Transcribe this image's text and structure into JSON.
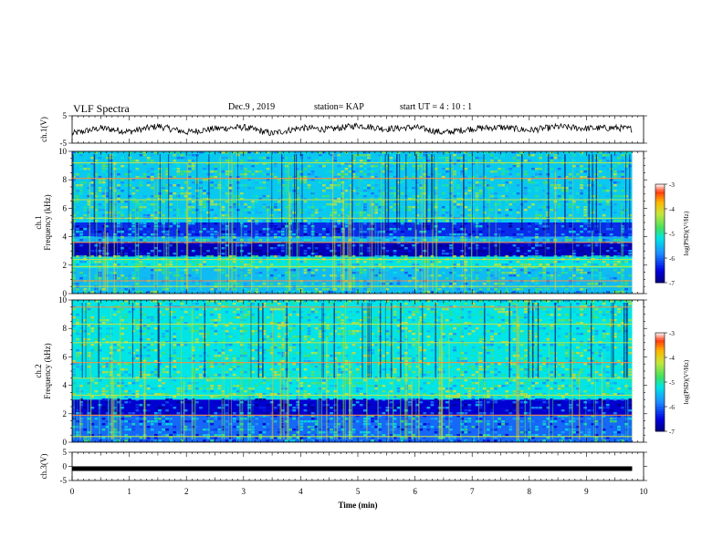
{
  "header": {
    "title": "VLF Spectra",
    "date": "Dec.9 , 2019",
    "station": "station= KAP",
    "start": "start UT = 4 : 10 : 1"
  },
  "colors": {
    "spectrogram_bg": "#1040c8",
    "spectrogram_dark": "#00107a",
    "speckle_green": "#3cdc6e",
    "speckle_cyan": "#28b8f0",
    "line_yellow": "#c8e63c",
    "line_orange": "#ff8c3c",
    "waveform": "#000000"
  },
  "chart_data": [
    {
      "type": "line",
      "name": "ch1-waveform",
      "ylabel": "ch.1(V)",
      "ylim": [
        -5,
        5
      ],
      "yticks": [
        5,
        -5
      ],
      "xlim": [
        0,
        10
      ],
      "x": [
        0,
        0.5,
        1,
        1.5,
        2,
        2.5,
        3,
        3.5,
        4,
        4.5,
        5,
        5.5,
        6,
        6.5,
        7,
        7.5,
        8,
        8.5,
        9,
        9.5,
        9.8
      ],
      "y": [
        -1.5,
        0.5,
        -0.8,
        1.2,
        -1.0,
        0.3,
        0.8,
        -1.5,
        0.6,
        0.0,
        1.5,
        0.2,
        0.8,
        -1.2,
        0.3,
        0.8,
        -0.3,
        1.0,
        0.4,
        0.6,
        0.2
      ]
    },
    {
      "type": "heatmap",
      "name": "ch1-spectrogram",
      "ylabel": "ch.1\nFrequency (kHz)",
      "ylim": [
        0,
        10
      ],
      "yticks": [
        0,
        2,
        4,
        6,
        8,
        10
      ],
      "xlim": [
        0,
        10
      ],
      "data_xmax": 9.8,
      "colorbar": {
        "label": "log(PSD)(V²/Hz)",
        "ticks": [
          -3,
          -4,
          -5,
          -6,
          -7
        ],
        "range": [
          -7,
          -3
        ]
      },
      "bands": [
        {
          "f0": 0.0,
          "f1": 1.8,
          "level": -5.5
        },
        {
          "f0": 1.8,
          "f1": 2.6,
          "level": -5.2
        },
        {
          "f0": 2.6,
          "f1": 3.6,
          "level": -6.7
        },
        {
          "f0": 3.6,
          "f1": 4.0,
          "level": -5.6
        },
        {
          "f0": 4.0,
          "f1": 5.0,
          "level": -6.3
        },
        {
          "f0": 5.0,
          "f1": 10.0,
          "level": -5.4
        }
      ],
      "tones_khz": [
        0.5,
        0.9,
        1.9,
        2.4,
        3.6,
        5.3,
        6.6,
        8.1,
        9.2
      ]
    },
    {
      "type": "heatmap",
      "name": "ch2-spectrogram",
      "ylabel": "ch.2\nFrequency (kHz)",
      "ylim": [
        0,
        10
      ],
      "yticks": [
        0,
        2,
        4,
        6,
        8,
        10
      ],
      "xlim": [
        0,
        10
      ],
      "data_xmax": 9.8,
      "colorbar": {
        "label": "log(PSD)(V²/Hz)",
        "ticks": [
          -3,
          -4,
          -5,
          -6,
          -7
        ],
        "range": [
          -7,
          -3
        ]
      },
      "bands": [
        {
          "f0": 0.0,
          "f1": 1.9,
          "level": -6.0
        },
        {
          "f0": 1.9,
          "f1": 3.0,
          "level": -6.6
        },
        {
          "f0": 3.0,
          "f1": 10.0,
          "level": -5.2
        }
      ],
      "tones_khz": [
        0.4,
        1.9,
        3.3,
        4.5,
        5.6,
        7.0,
        8.3,
        9.5
      ]
    },
    {
      "type": "line",
      "name": "ch3-waveform",
      "ylabel": "ch.3(V)",
      "ylim": [
        -5,
        5
      ],
      "yticks": [
        5,
        0,
        -5
      ],
      "xlim": [
        0,
        10
      ],
      "x": [
        0,
        9.8
      ],
      "y": [
        -0.8,
        -0.8
      ]
    }
  ],
  "xaxis": {
    "label": "Time (min)",
    "ticks": [
      0,
      1,
      2,
      3,
      4,
      5,
      6,
      7,
      8,
      9,
      10
    ]
  }
}
